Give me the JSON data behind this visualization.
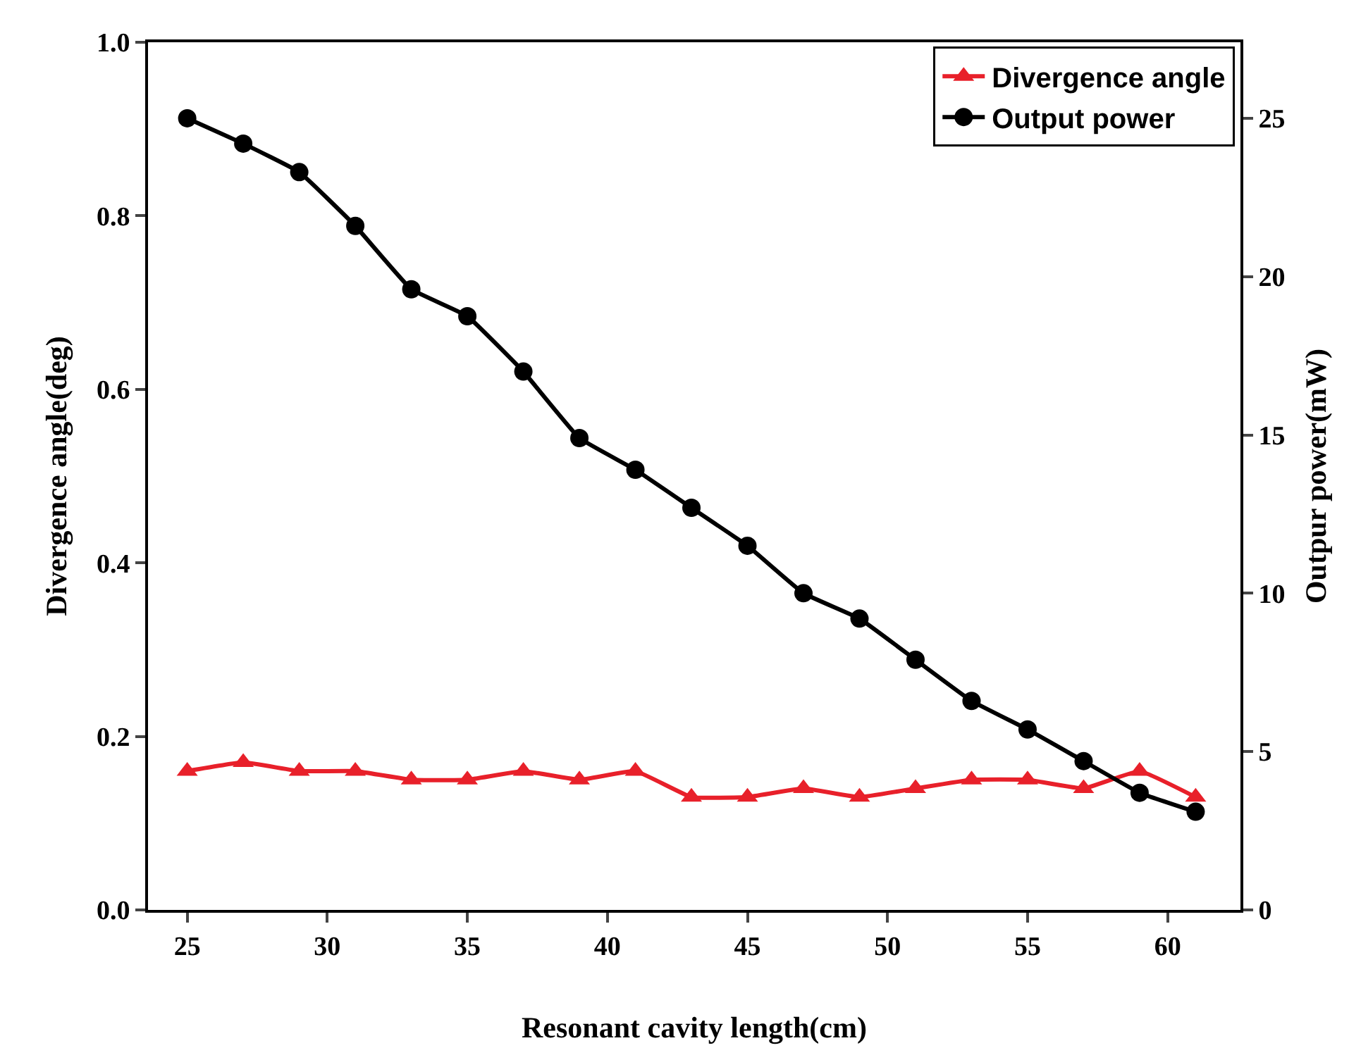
{
  "chart_data": {
    "type": "line",
    "xlabel": "Resonant cavity length(cm)",
    "ylabel": "Divergence angle(deg)",
    "y2label": "Outpur power(mW)",
    "x": [
      25,
      27,
      29,
      31,
      33,
      35,
      37,
      39,
      41,
      43,
      45,
      47,
      49,
      51,
      53,
      55,
      57,
      59,
      61
    ],
    "xlim": [
      23.6,
      62.6
    ],
    "xticks": [
      25,
      30,
      35,
      40,
      45,
      50,
      55,
      60
    ],
    "ylim": [
      0,
      1.0
    ],
    "yticks": [
      {
        "value": 0,
        "label": "0.0"
      },
      0.2,
      0.4,
      0.6,
      0.8,
      {
        "value": 1,
        "label": "1.0"
      }
    ],
    "y2lim": [
      0,
      27.4
    ],
    "y2ticks": [
      0,
      5,
      10,
      15,
      20,
      25
    ],
    "legend": "top right",
    "series": [
      {
        "name": "Divergence angle",
        "color": "#e8202a",
        "marker": "triangle",
        "values": [
          0.16,
          0.17,
          0.16,
          0.16,
          0.15,
          0.15,
          0.16,
          0.15,
          0.16,
          0.13,
          0.13,
          0.14,
          0.13,
          0.14,
          0.15,
          0.15,
          0.14,
          0.16,
          0.13
        ]
      },
      {
        "name": "Output power",
        "color": "#000000",
        "marker": "circle",
        "axis": "y2",
        "values": [
          25.0,
          24.2,
          23.3,
          21.6,
          19.6,
          18.75,
          17.0,
          14.9,
          13.9,
          12.7,
          11.5,
          10.0,
          9.2,
          7.9,
          6.6,
          5.7,
          4.7,
          3.7,
          3.1
        ]
      }
    ]
  }
}
